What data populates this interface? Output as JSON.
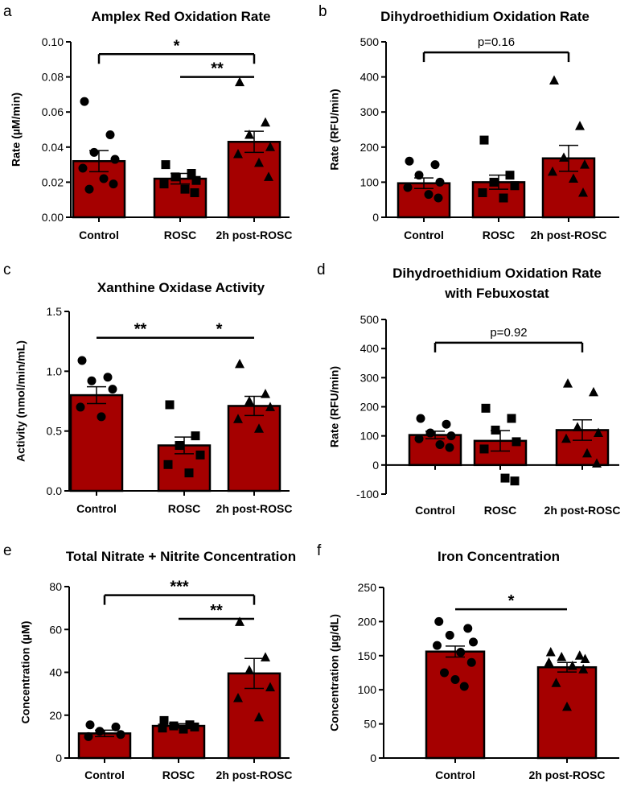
{
  "figure": {
    "colors": {
      "bar": "#a50000",
      "edge": "#000000",
      "point": "#000000"
    }
  },
  "chart_data": [
    {
      "panel": "a",
      "type": "bar",
      "title": "Amplex Red Oxidation Rate",
      "ylabel": "Rate (µM/min)",
      "categories": [
        "Control",
        "ROSC",
        "2h post-ROSC"
      ],
      "ylim": [
        0,
        0.1
      ],
      "yticks": [
        0,
        0.02,
        0.04,
        0.06,
        0.08,
        0.1
      ],
      "ytick_labels": [
        "0.00",
        "0.02",
        "0.04",
        "0.06",
        "0.08",
        "0.10"
      ],
      "values": [
        0.032,
        0.022,
        0.043
      ],
      "sem": [
        0.006,
        0.003,
        0.006
      ],
      "marker": [
        "circle",
        "square",
        "triangle"
      ],
      "points": [
        [
          0.066,
          0.047,
          0.037,
          0.033,
          0.028,
          0.022,
          0.019,
          0.016
        ],
        [
          0.03,
          0.025,
          0.023,
          0.021,
          0.019,
          0.016,
          0.014
        ],
        [
          0.077,
          0.054,
          0.047,
          0.04,
          0.036,
          0.031,
          0.023
        ]
      ],
      "significance": [
        {
          "from": 0,
          "to": 2,
          "y": 0.093,
          "label": "*"
        },
        {
          "from": 1,
          "to": 2,
          "y": 0.08,
          "label": "**"
        }
      ]
    },
    {
      "panel": "b",
      "type": "bar",
      "title": "Dihydroethidium Oxidation Rate",
      "ylabel": "Rate (RFU/min)",
      "categories": [
        "Control",
        "ROSC",
        "2h post-ROSC"
      ],
      "ylim": [
        0,
        500
      ],
      "yticks": [
        0,
        100,
        200,
        300,
        400,
        500
      ],
      "ytick_labels": [
        "0",
        "100",
        "200",
        "300",
        "400",
        "500"
      ],
      "values": [
        97,
        100,
        168
      ],
      "sem": [
        15,
        20,
        37
      ],
      "marker": [
        "circle",
        "square",
        "triangle"
      ],
      "points": [
        [
          160,
          150,
          120,
          100,
          85,
          65,
          55
        ],
        [
          220,
          120,
          100,
          90,
          70,
          55
        ],
        [
          390,
          260,
          170,
          150,
          130,
          110,
          70
        ]
      ],
      "significance": [
        {
          "from": 0,
          "to": 2,
          "y": 470,
          "label": "p=0.16"
        }
      ]
    },
    {
      "panel": "c",
      "type": "bar",
      "title": "Xanthine Oxidase Activity",
      "ylabel": "Activity (nmol/min/mL)",
      "categories": [
        "Control",
        "ROSC",
        "2h post-ROSC"
      ],
      "ylim": [
        0,
        1.5
      ],
      "yticks": [
        0,
        0.5,
        1.0,
        1.5
      ],
      "ytick_labels": [
        "0.0",
        "0.5",
        "1.0",
        "1.5"
      ],
      "values": [
        0.8,
        0.38,
        0.71
      ],
      "sem": [
        0.07,
        0.07,
        0.08
      ],
      "marker": [
        "circle",
        "square",
        "triangle"
      ],
      "points": [
        [
          1.09,
          0.95,
          0.92,
          0.85,
          0.7,
          0.62
        ],
        [
          0.72,
          0.46,
          0.38,
          0.3,
          0.22,
          0.15
        ],
        [
          1.06,
          0.81,
          0.75,
          0.7,
          0.6,
          0.52
        ]
      ],
      "significance": [
        {
          "from": 0,
          "to": 1,
          "y": 1.28,
          "label": "**"
        },
        {
          "from": 1,
          "to": 2,
          "y": 1.28,
          "label": "*"
        }
      ]
    },
    {
      "panel": "d",
      "type": "bar",
      "title": "Dihydroethidium Oxidation Rate",
      "subtitle": "with Febuxostat",
      "ylabel": "Rate (RFU/min)",
      "categories": [
        "Control",
        "ROSC",
        "2h post-ROSC"
      ],
      "ylim": [
        -100,
        500
      ],
      "yticks": [
        -100,
        0,
        100,
        200,
        300,
        400,
        500
      ],
      "ytick_labels": [
        "-100",
        "0",
        "100",
        "200",
        "300",
        "400",
        "500"
      ],
      "values": [
        103,
        83,
        120
      ],
      "sem": [
        13,
        35,
        35
      ],
      "marker": [
        "circle",
        "square",
        "triangle"
      ],
      "points": [
        [
          160,
          140,
          110,
          100,
          90,
          70,
          60
        ],
        [
          195,
          160,
          120,
          80,
          55,
          -45,
          -55
        ],
        [
          280,
          250,
          130,
          110,
          90,
          40,
          5
        ]
      ],
      "significance": [
        {
          "from": 0,
          "to": 2,
          "y": 420,
          "label": "p=0.92"
        }
      ]
    },
    {
      "panel": "e",
      "type": "bar",
      "title": "Total Nitrate + Nitrite Concentration",
      "ylabel": "Concentration (µM)",
      "categories": [
        "Control",
        "ROSC",
        "2h post-ROSC"
      ],
      "ylim": [
        0,
        80
      ],
      "yticks": [
        0,
        20,
        40,
        60,
        80
      ],
      "ytick_labels": [
        "0",
        "20",
        "40",
        "60",
        "80"
      ],
      "values": [
        11.5,
        15.0,
        39.5
      ],
      "sem": [
        1.5,
        1.0,
        7.0
      ],
      "marker": [
        "circle",
        "square",
        "triangle"
      ],
      "points": [
        [
          15.5,
          14.5,
          12.5,
          11.0,
          10.0
        ],
        [
          17.5,
          15.5,
          15.0,
          14.5,
          14.0,
          13.5
        ],
        [
          63.5,
          47,
          41,
          33,
          28,
          19
        ]
      ],
      "significance": [
        {
          "from": 0,
          "to": 2,
          "y": 76,
          "label": "***"
        },
        {
          "from": 1,
          "to": 2,
          "y": 65,
          "label": "**"
        }
      ]
    },
    {
      "panel": "f",
      "type": "bar",
      "title": "Iron Concentration",
      "ylabel": "Concentration (µg/dL)",
      "categories": [
        "Control",
        "2h post-ROSC"
      ],
      "ylim": [
        0,
        250
      ],
      "yticks": [
        0,
        50,
        100,
        150,
        200,
        250
      ],
      "ytick_labels": [
        "0",
        "50",
        "100",
        "150",
        "200",
        "250"
      ],
      "values": [
        156,
        133
      ],
      "sem": [
        8,
        7
      ],
      "marker": [
        "circle",
        "triangle"
      ],
      "points": [
        [
          200,
          190,
          180,
          170,
          165,
          155,
          140,
          125,
          115,
          105
        ],
        [
          155,
          150,
          148,
          145,
          140,
          135,
          130,
          110,
          75
        ]
      ],
      "significance": [
        {
          "from": 0,
          "to": 1,
          "y": 218,
          "label": "*"
        }
      ]
    }
  ]
}
